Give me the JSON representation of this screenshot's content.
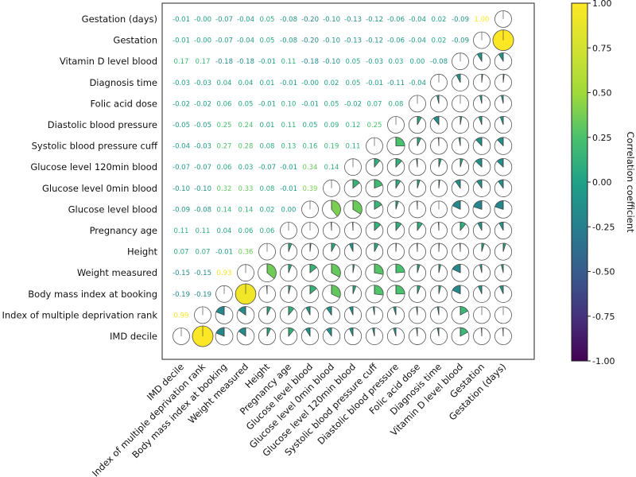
{
  "chart_data": {
    "type": "heatmap",
    "title": "",
    "style": "correlogram: coefficients in upper-left triangle, pie glyphs in lower-right triangle",
    "variables": [
      "IMD decile",
      "Index of multiple deprivation rank",
      "Body mass index at booking",
      "Weight measured",
      "Height",
      "Pregnancy age",
      "Glucose level blood",
      "Glucose level 0min blood",
      "Glucose level 120min blood",
      "Systolic blood pressure cuff",
      "Diastolic blood pressure",
      "Folic acid dose",
      "Diagnosis time",
      "Vitamin D level blood",
      "Gestation",
      "Gestation (days)"
    ],
    "row_labels_top_to_bottom": [
      "Gestation (days)",
      "Gestation",
      "Vitamin D level blood",
      "Diagnosis time",
      "Folic acid dose",
      "Diastolic blood pressure",
      "Systolic blood pressure cuff",
      "Glucose level 120min blood",
      "Glucose level 0min blood",
      "Glucose level blood",
      "Pregnancy age",
      "Height",
      "Weight measured",
      "Body mass index at booking",
      "Index of multiple deprivation rank",
      "IMD decile"
    ],
    "column_labels_left_to_right": [
      "IMD decile",
      "Index of multiple deprivation rank",
      "Body mass index at booking",
      "Weight measured",
      "Height",
      "Pregnancy age",
      "Glucose level blood",
      "Glucose level 0min blood",
      "Glucose level 120min blood",
      "Systolic blood pressure cuff",
      "Diastolic blood pressure",
      "Folic acid dose",
      "Diagnosis time",
      "Vitamin D level blood",
      "Gestation",
      "Gestation (days)"
    ],
    "coefficient_text_rows_top_to_bottom": [
      [
        "-0.01",
        "-0.00",
        "-0.07",
        "-0.04",
        "0.05",
        "-0.08",
        "-0.20",
        "-0.10",
        "-0.13",
        "-0.12",
        "-0.06",
        "-0.04",
        "0.02",
        "-0.09",
        "1.00"
      ],
      [
        "-0.01",
        "-0.00",
        "-0.07",
        "-0.04",
        "0.05",
        "-0.08",
        "-0.20",
        "-0.10",
        "-0.13",
        "-0.12",
        "-0.06",
        "-0.04",
        "0.02",
        "-0.09"
      ],
      [
        "0.17",
        "0.17",
        "-0.18",
        "-0.18",
        "-0.01",
        "0.11",
        "-0.18",
        "-0.10",
        "0.05",
        "-0.03",
        "0.03",
        "0.00",
        "-0.08"
      ],
      [
        "-0.03",
        "-0.03",
        "0.04",
        "0.04",
        "0.01",
        "-0.01",
        "-0.00",
        "0.02",
        "0.05",
        "-0.01",
        "-0.11",
        "-0.04"
      ],
      [
        "-0.02",
        "-0.02",
        "0.06",
        "0.05",
        "-0.01",
        "0.10",
        "-0.01",
        "0.05",
        "-0.02",
        "0.07",
        "0.08"
      ],
      [
        "-0.05",
        "-0.05",
        "0.25",
        "0.24",
        "0.01",
        "0.11",
        "0.05",
        "0.09",
        "0.12",
        "0.25"
      ],
      [
        "-0.04",
        "-0.03",
        "0.27",
        "0.28",
        "0.08",
        "0.13",
        "0.16",
        "0.19",
        "0.11"
      ],
      [
        "-0.07",
        "-0.07",
        "0.06",
        "0.03",
        "-0.07",
        "-0.01",
        "0.34",
        "0.14"
      ],
      [
        "-0.10",
        "-0.10",
        "0.32",
        "0.33",
        "0.08",
        "-0.01",
        "0.39"
      ],
      [
        "-0.09",
        "-0.08",
        "0.14",
        "0.14",
        "0.02",
        "0.00"
      ],
      [
        "0.11",
        "0.11",
        "0.04",
        "0.06",
        "0.06"
      ],
      [
        "0.07",
        "0.07",
        "-0.01",
        "0.36"
      ],
      [
        "-0.15",
        "-0.15",
        "0.93"
      ],
      [
        "-0.19",
        "-0.19"
      ],
      [
        "0.99"
      ]
    ],
    "colorbar": {
      "label": "Correlation coefficient",
      "range": [
        -1.0,
        1.0
      ],
      "colormap": "viridis",
      "ticks": [
        "1.00",
        "0.75",
        "0.50",
        "0.25",
        "0.00",
        "-0.25",
        "-0.50",
        "-0.75",
        "-1.00"
      ]
    }
  }
}
